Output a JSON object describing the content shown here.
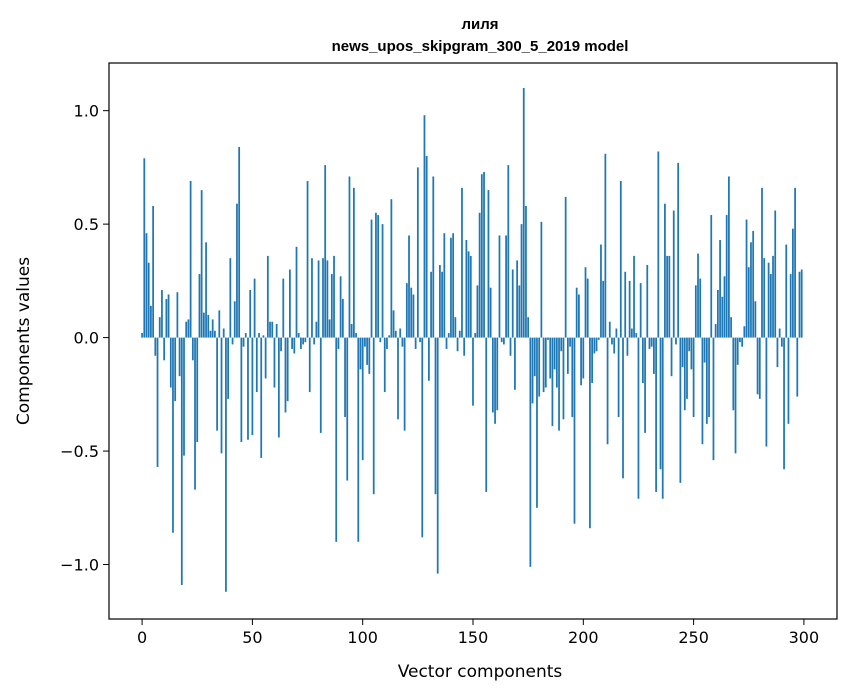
{
  "chart_data": {
    "type": "bar",
    "title": "лиля",
    "subtitle": "news_upos_skipgram_300_5_2019 model",
    "xlabel": "Vector components",
    "ylabel": "Components values",
    "xlim": [
      -15,
      315
    ],
    "ylim": [
      -1.24,
      1.21
    ],
    "xticks": [
      0,
      50,
      100,
      150,
      200,
      250,
      300
    ],
    "xtick_labels": [
      "0",
      "50",
      "100",
      "150",
      "200",
      "250",
      "300"
    ],
    "yticks": [
      -1.0,
      -0.5,
      0.0,
      0.5,
      1.0
    ],
    "ytick_labels": [
      "−1.0",
      "−0.5",
      "0.0",
      "0.5",
      "1.0"
    ],
    "bar_color": "#1f77b4",
    "grid": false,
    "legend": "none",
    "values": [
      0.02,
      0.79,
      0.46,
      0.33,
      0.14,
      0.58,
      -0.08,
      -0.57,
      0.09,
      0.21,
      -0.1,
      0.17,
      0.19,
      -0.22,
      -0.86,
      -0.28,
      0.2,
      -0.17,
      -1.09,
      -0.52,
      0.07,
      0.08,
      0.69,
      -0.1,
      -0.67,
      -0.46,
      0.28,
      0.65,
      0.11,
      0.42,
      0.1,
      0.03,
      0.08,
      0.03,
      -0.41,
      0.12,
      -0.51,
      0.04,
      -1.12,
      -0.27,
      0.35,
      -0.03,
      0.16,
      0.59,
      0.84,
      -0.46,
      -0.04,
      0.02,
      -0.45,
      0.21,
      -0.43,
      0.26,
      -0.24,
      0.02,
      -0.53,
      0.01,
      -0.18,
      0.36,
      0.07,
      0.07,
      -0.22,
      0.06,
      -0.44,
      -0.06,
      0.26,
      -0.33,
      -0.28,
      0.3,
      -0.05,
      -0.07,
      0.4,
      0.02,
      -0.05,
      -0.03,
      -0.02,
      0.69,
      -0.24,
      0.35,
      -0.03,
      0.07,
      0.34,
      -0.42,
      0.35,
      0.76,
      0.34,
      0.08,
      0.28,
      0.36,
      -0.9,
      -0.05,
      0.27,
      0.17,
      -0.35,
      -0.63,
      0.71,
      0.06,
      0.66,
      0.02,
      -0.9,
      -0.14,
      -0.54,
      -0.04,
      -0.12,
      -0.16,
      0.52,
      -0.69,
      0.55,
      0.54,
      -0.02,
      0.5,
      -0.24,
      -0.05,
      0.01,
      0.61,
      0.12,
      0.03,
      -0.36,
      0.04,
      -0.04,
      -0.41,
      0.24,
      0.45,
      0.22,
      0.19,
      -0.05,
      0.75,
      -0.02,
      -0.88,
      0.98,
      0.8,
      -0.19,
      0.29,
      0.71,
      -0.69,
      -1.04,
      0.32,
      0.29,
      0.46,
      -0.05,
      0.02,
      0.44,
      0.46,
      0.09,
      -0.06,
      0.03,
      0.66,
      -0.08,
      0.43,
      0.38,
      0.36,
      -0.3,
      0.02,
      0.23,
      0.55,
      0.72,
      0.73,
      -0.68,
      0.65,
      0.22,
      -0.33,
      -0.38,
      -0.32,
      0.45,
      -0.02,
      -0.03,
      0.45,
      0.76,
      -0.08,
      0.3,
      -0.23,
      0.34,
      0.23,
      0.5,
      1.1,
      0.58,
      0.09,
      -1.01,
      -0.29,
      -0.17,
      -0.75,
      -0.26,
      0.51,
      -0.24,
      -0.22,
      -0.01,
      -0.18,
      -0.39,
      -0.14,
      -0.22,
      -0.41,
      -0.06,
      -0.36,
      0.62,
      -0.16,
      -0.04,
      -0.35,
      -0.82,
      0.22,
      0.19,
      -0.21,
      -0.18,
      0.31,
      0.26,
      -0.84,
      -0.2,
      -0.07,
      -0.06,
      -0.01,
      0.41,
      0.25,
      0.81,
      -0.47,
      0.07,
      -0.03,
      -0.07,
      0.04,
      -0.35,
      0.69,
      -0.62,
      0.29,
      -0.08,
      0.25,
      0.04,
      0.36,
      0.02,
      -0.71,
      0.24,
      -0.2,
      -0.42,
      0.32,
      -0.05,
      -0.04,
      -0.16,
      -0.68,
      0.82,
      -0.58,
      -0.71,
      0.59,
      0.36,
      0.36,
      -0.17,
      0.56,
      -0.03,
      0.77,
      -0.64,
      -0.13,
      -0.32,
      -0.27,
      -0.06,
      -0.14,
      -0.35,
      0.23,
      0.37,
      0.26,
      -0.47,
      -0.11,
      -0.38,
      -0.35,
      0.54,
      -0.54,
      0.06,
      0.21,
      0.43,
      0.18,
      0.27,
      0.54,
      0.71,
      0.09,
      -0.32,
      -0.51,
      -0.12,
      -0.02,
      -0.04,
      0.05,
      0.52,
      0.31,
      0.42,
      0.47,
      0.16,
      -0.25,
      -0.27,
      0.66,
      0.35,
      -0.48,
      0.33,
      0.28,
      0.36,
      0.56,
      -0.13,
      0.04,
      -0.04,
      -0.58,
      0.41,
      -0.38,
      0.28,
      0.48,
      0.66,
      -0.26,
      0.29,
      0.3
    ]
  }
}
